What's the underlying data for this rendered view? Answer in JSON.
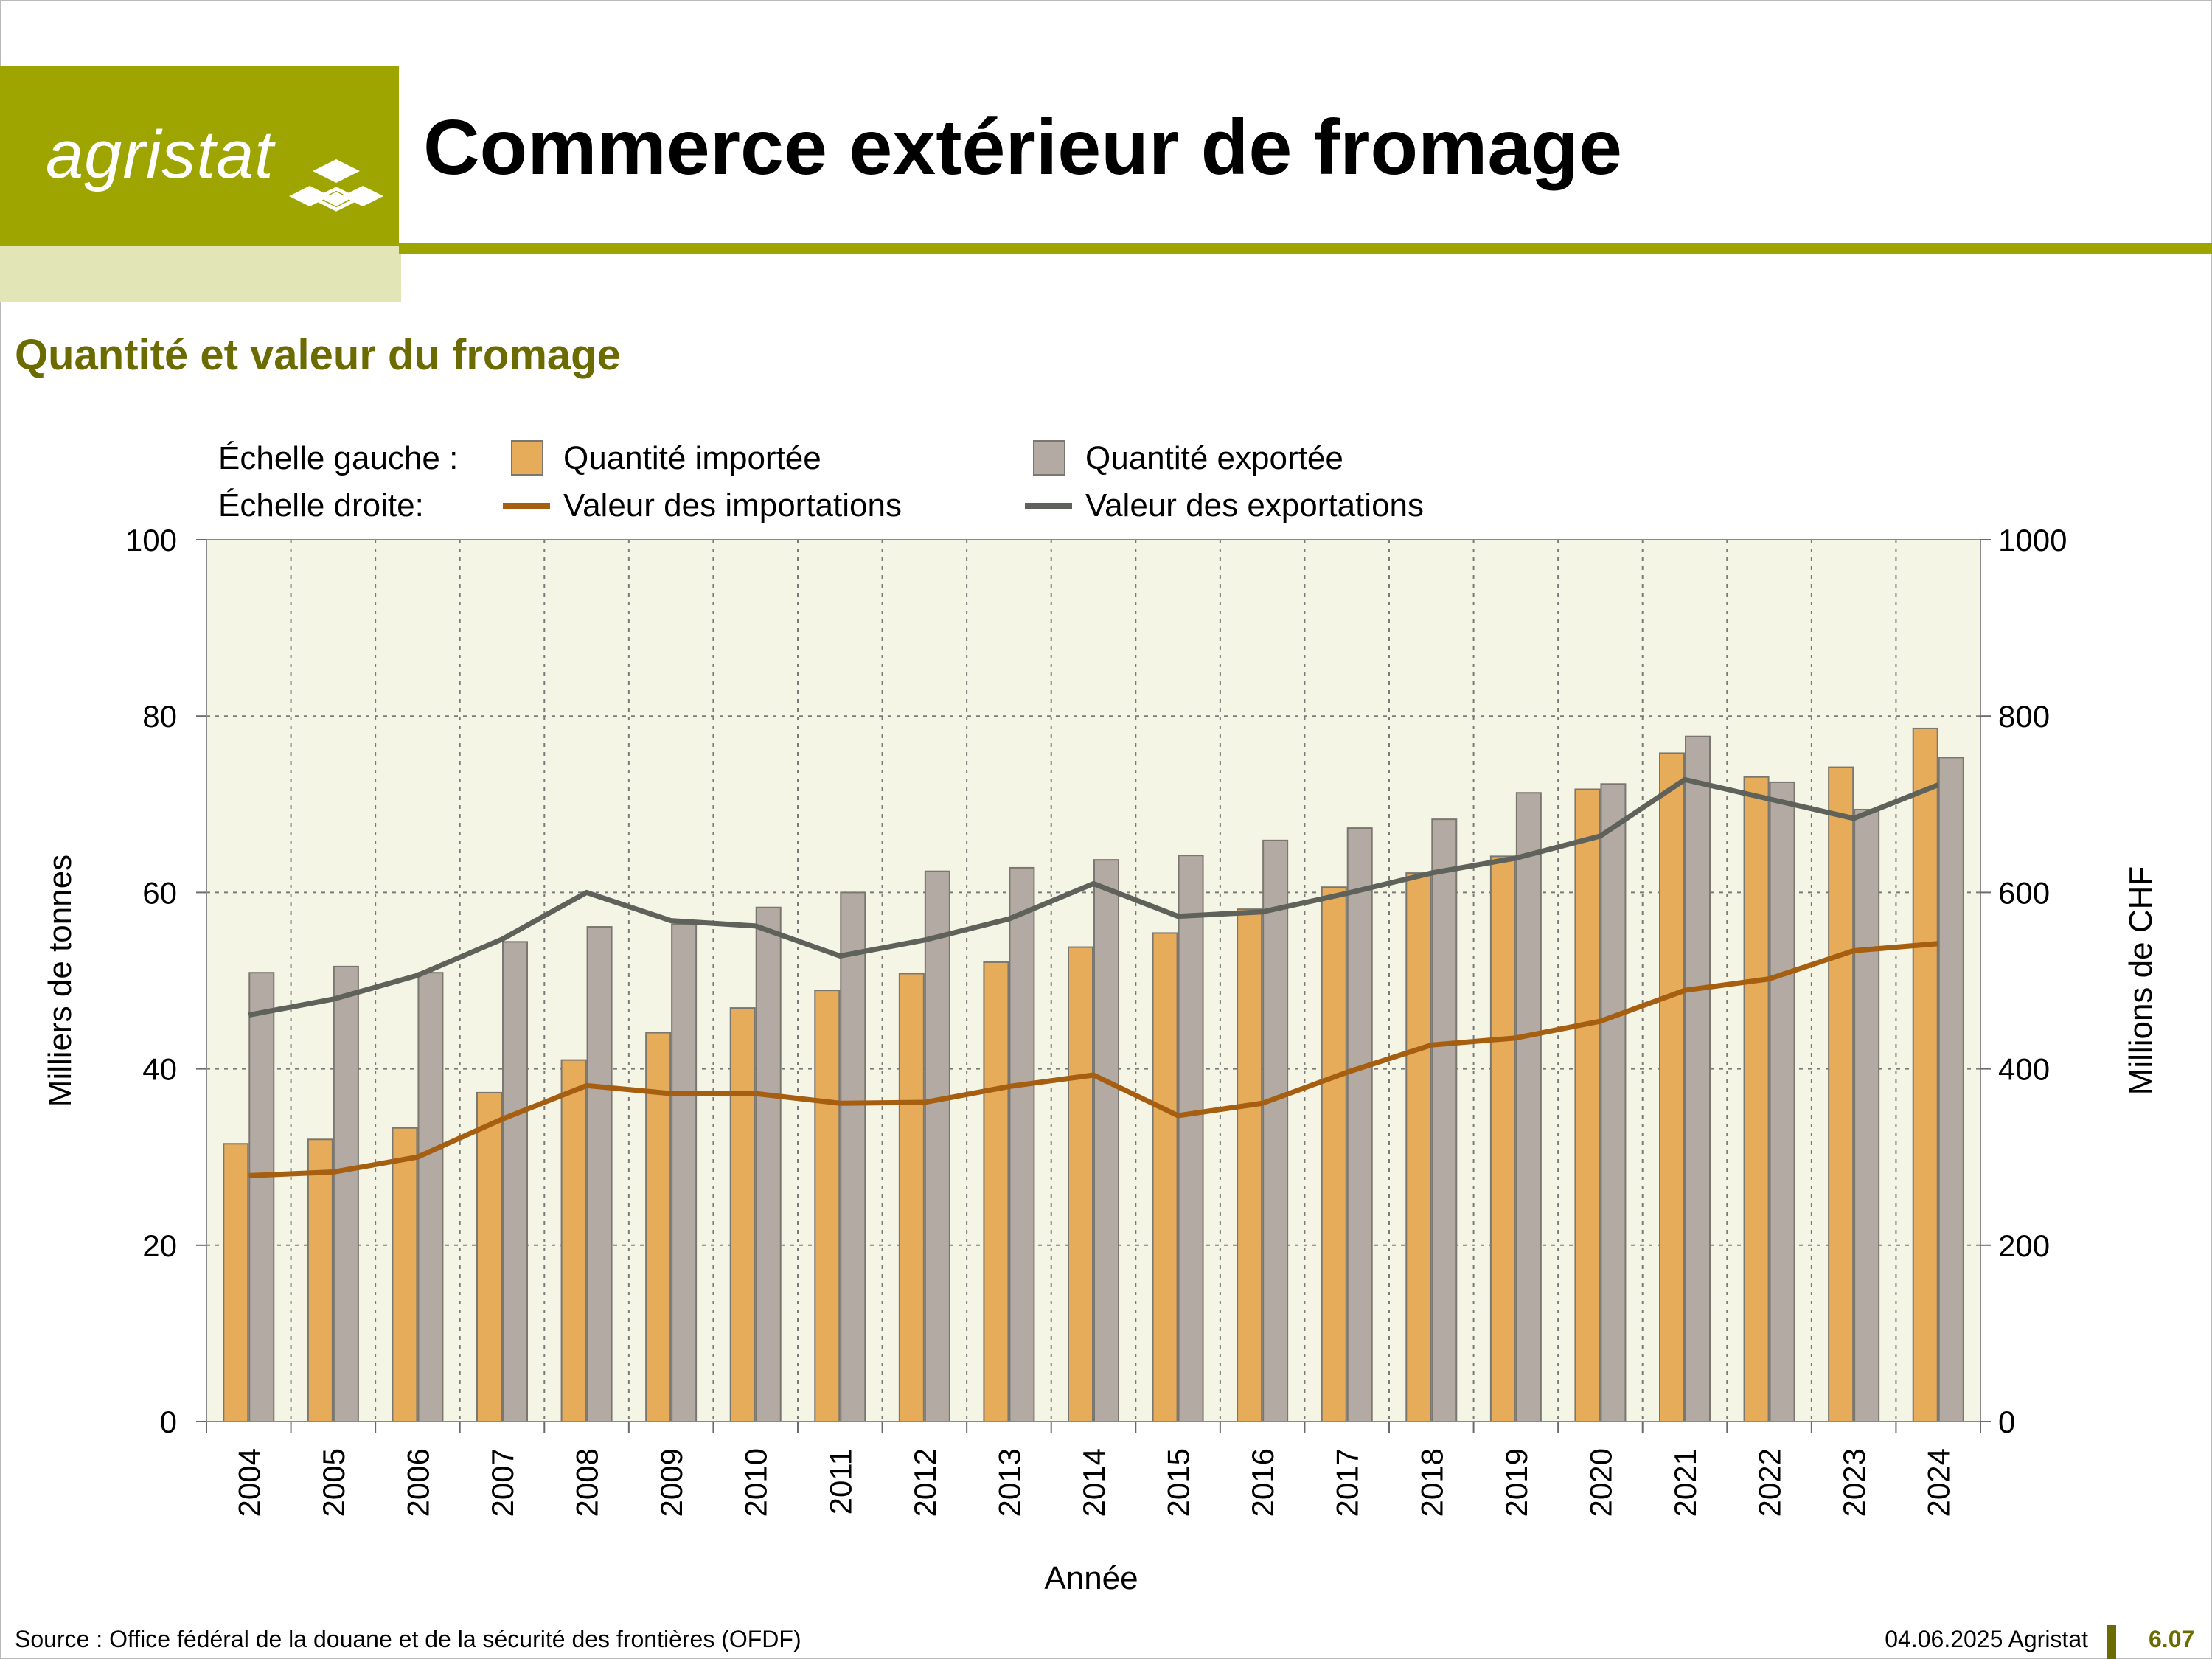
{
  "header": {
    "logo_text": "agristat",
    "title": "Commerce extérieur de fromage",
    "subtitle": "Quantité et valeur du fromage",
    "brand_color": "#9ea500"
  },
  "legend": {
    "left_scale_label": "Échelle gauche :",
    "right_scale_label": "Échelle droite:"
  },
  "footer": {
    "source": "Source : Office fédéral de la douane et de la sécurité des frontières (OFDF)",
    "date": "04.06.2025 Agristat",
    "page": "6.07"
  },
  "chart_data": {
    "type": "bar",
    "xlabel": "Année",
    "ylabel": "Milliers de tonnes",
    "y2label": "Millions de CHF",
    "ylim": [
      0,
      100
    ],
    "y2lim": [
      0,
      1000
    ],
    "yticks": [
      0,
      20,
      40,
      60,
      80,
      100
    ],
    "y2ticks": [
      0,
      200,
      400,
      600,
      800,
      1000
    ],
    "grid": true,
    "legend_position": "top",
    "categories": [
      "2004",
      "2005",
      "2006",
      "2007",
      "2008",
      "2009",
      "2010",
      "2011",
      "2012",
      "2013",
      "2014",
      "2015",
      "2016",
      "2017",
      "2018",
      "2019",
      "2020",
      "2021",
      "2022",
      "2023",
      "2024"
    ],
    "series": [
      {
        "name": "Quantité importée",
        "type": "bar",
        "axis": "left",
        "color": "#e6ac5a",
        "values": [
          31.5,
          32.0,
          33.3,
          37.3,
          41.0,
          44.1,
          46.9,
          48.9,
          50.8,
          52.1,
          53.8,
          55.4,
          58.1,
          60.6,
          62.2,
          64.1,
          71.7,
          75.8,
          73.1,
          74.2,
          78.6
        ]
      },
      {
        "name": "Quantité exportée",
        "type": "bar",
        "axis": "left",
        "color": "#b4aaa4",
        "values": [
          50.9,
          51.6,
          50.9,
          54.4,
          56.1,
          56.4,
          58.3,
          60.0,
          62.4,
          62.8,
          63.7,
          64.2,
          65.9,
          67.3,
          68.3,
          71.3,
          72.3,
          77.7,
          72.5,
          69.4,
          75.3
        ]
      },
      {
        "name": "Valeur des importations",
        "type": "line",
        "axis": "right",
        "color": "#a65f11",
        "values": [
          279,
          283,
          300,
          343,
          381,
          372,
          372,
          361,
          362,
          380,
          393,
          347,
          361,
          396,
          427,
          435,
          454,
          489,
          502,
          534,
          542
        ]
      },
      {
        "name": "Valeur des exportations",
        "type": "line",
        "axis": "right",
        "color": "#5f625a",
        "values": [
          461,
          479,
          506,
          547,
          600,
          568,
          562,
          528,
          546,
          570,
          610,
          573,
          578,
          599,
          622,
          639,
          664,
          728,
          706,
          684,
          722
        ]
      }
    ]
  }
}
